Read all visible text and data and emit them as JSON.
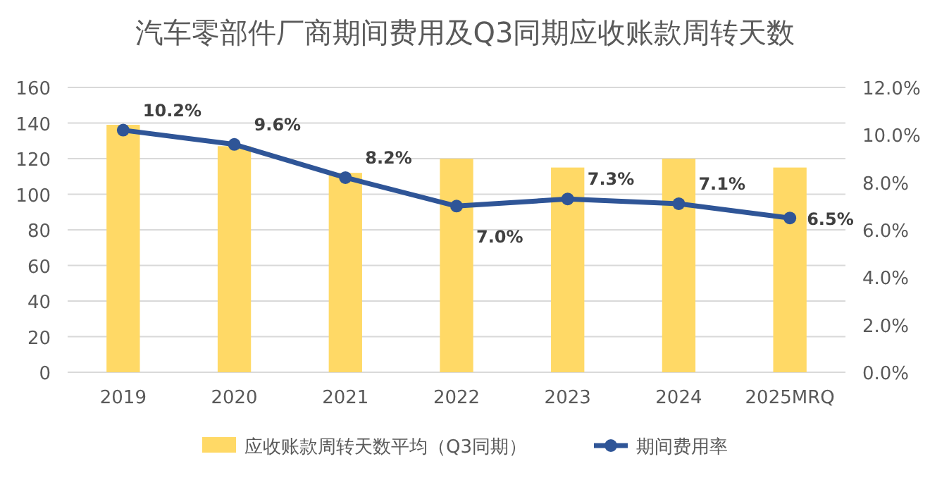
{
  "chart_data": {
    "type": "bar",
    "title": "汽车零部件厂商期间费用及Q3同期应收账款周转天数",
    "categories": [
      "2019",
      "2020",
      "2021",
      "2022",
      "2023",
      "2024",
      "2025MRQ"
    ],
    "series": [
      {
        "name": "应收账款周转天数平均（Q3同期）",
        "color": "#ffd966",
        "values": [
          139,
          127,
          112,
          120,
          115,
          120,
          115
        ]
      },
      {
        "name": "期间费用率",
        "type": "line",
        "axis": "y2",
        "color": "#2f5597",
        "marker": "circle",
        "values": [
          10.2,
          9.6,
          8.2,
          7.0,
          7.3,
          7.1,
          6.5
        ],
        "value_labels": [
          "10.2%",
          "9.6%",
          "8.2%",
          "7.0%",
          "7.3%",
          "7.1%",
          "6.5%"
        ]
      }
    ],
    "ylim": [
      0,
      160
    ],
    "yticks": [
      0,
      20,
      40,
      60,
      80,
      100,
      120,
      140,
      160
    ],
    "y2lim": [
      0,
      12
    ],
    "y2ticks": [
      {
        "value": 0,
        "label": "0.0%"
      },
      {
        "value": 2,
        "label": "2.0%"
      },
      {
        "value": 4,
        "label": "4.0%"
      },
      {
        "value": 6,
        "label": "6.0%"
      },
      {
        "value": 8,
        "label": "8.0%"
      },
      {
        "value": 10,
        "label": "10.0%"
      },
      {
        "value": 12,
        "label": "12.0%"
      }
    ],
    "grid": "y",
    "legend": "bottom"
  }
}
